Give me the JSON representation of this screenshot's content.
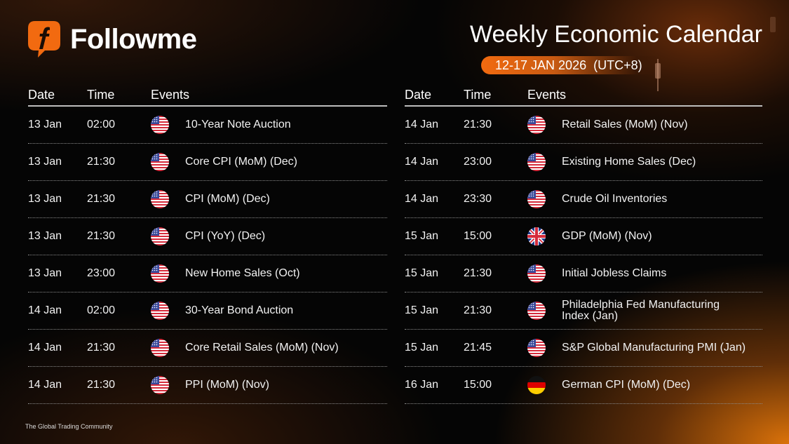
{
  "brand": {
    "name": "Followme",
    "logo_icon": "followme-f-logo-icon",
    "tagline": "The Global Trading Community",
    "accent": "#F26A10"
  },
  "header": {
    "title": "Weekly Economic Calendar",
    "date_range": "12-17 JAN 2026  (UTC+8)"
  },
  "columns": {
    "date": "Date",
    "time": "Time",
    "events": "Events"
  },
  "left_table": [
    {
      "date": "13 Jan",
      "time": "02:00",
      "country": "us",
      "event": "10-Year Note Auction"
    },
    {
      "date": "13 Jan",
      "time": "21:30",
      "country": "us",
      "event": "Core CPI (MoM) (Dec)"
    },
    {
      "date": "13 Jan",
      "time": "21:30",
      "country": "us",
      "event": "CPI (MoM) (Dec)"
    },
    {
      "date": "13 Jan",
      "time": "21:30",
      "country": "us",
      "event": "CPI (YoY) (Dec)"
    },
    {
      "date": "13 Jan",
      "time": "23:00",
      "country": "us",
      "event": "New Home Sales (Oct)"
    },
    {
      "date": "14 Jan",
      "time": "02:00",
      "country": "us",
      "event": "30-Year Bond Auction"
    },
    {
      "date": "14 Jan",
      "time": "21:30",
      "country": "us",
      "event": "Core Retail Sales (MoM) (Nov)"
    },
    {
      "date": "14 Jan",
      "time": "21:30",
      "country": "us",
      "event": "PPI (MoM) (Nov)"
    }
  ],
  "right_table": [
    {
      "date": "14 Jan",
      "time": "21:30",
      "country": "us",
      "event": "Retail Sales (MoM) (Nov)"
    },
    {
      "date": "14 Jan",
      "time": "23:00",
      "country": "us",
      "event": "Existing Home Sales (Dec)"
    },
    {
      "date": "14 Jan",
      "time": "23:30",
      "country": "us",
      "event": "Crude Oil Inventories"
    },
    {
      "date": "15 Jan",
      "time": "15:00",
      "country": "uk",
      "event": "GDP (MoM) (Nov)"
    },
    {
      "date": "15 Jan",
      "time": "21:30",
      "country": "us",
      "event": "Initial Jobless Claims"
    },
    {
      "date": "15 Jan",
      "time": "21:30",
      "country": "us",
      "event": "Philadelphia Fed Manufacturing Index (Jan)"
    },
    {
      "date": "15 Jan",
      "time": "21:45",
      "country": "us",
      "event": "S&P Global Manufacturing PMI (Jan)"
    },
    {
      "date": "16 Jan",
      "time": "15:00",
      "country": "de",
      "event": "German CPI (MoM) (Dec)"
    }
  ]
}
